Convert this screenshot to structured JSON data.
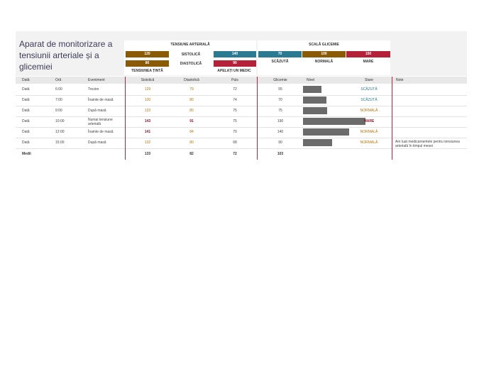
{
  "title": "Aparat de monitorizare a tensiunii arteriale și a glicemiei",
  "bp_panel": {
    "title": "TENSIUNE ARTERIALĂ",
    "target_systolic": "120",
    "systolic_label": "SISTOLICĂ",
    "call_systolic": "140",
    "target_diastolic": "80",
    "diastolic_label": "DIASTOLICĂ",
    "call_diastolic": "90",
    "target_caption": "TENSIUNEA ȚINTĂ",
    "call_caption": "APELAȚI UN MEDIC"
  },
  "glucose_panel": {
    "title": "SCALĂ GLICEMIE",
    "low_value": "70",
    "normal_value": "100",
    "high_value": "150",
    "low_label": "SCĂZUTĂ",
    "normal_label": "NORMALĂ",
    "high_label": "MARE"
  },
  "columns": {
    "date": "Dată",
    "time": "Oră",
    "event": "Eveniment",
    "systolic": "Sistolică",
    "diastolic": "Diastolică",
    "pulse": "Puls",
    "glucose": "Glicemie",
    "level": "Nivel",
    "status": "Stare",
    "notes": "Note"
  },
  "rows": [
    {
      "date": "Dată",
      "time": "6:00",
      "event": "Trezire",
      "systolic": "129",
      "diastolic": "79",
      "pulse": "72",
      "glucose": "55",
      "level": 0.29,
      "status": "SCĂZUTĂ",
      "notes": ""
    },
    {
      "date": "Dată",
      "time": "7:00",
      "event": "Înainte de masă",
      "systolic": "120",
      "diastolic": "80",
      "pulse": "74",
      "glucose": "70",
      "level": 0.37,
      "status": "SCĂZUTĂ",
      "notes": ""
    },
    {
      "date": "Dată",
      "time": "9:00",
      "event": "După masă",
      "systolic": "133",
      "diastolic": "80",
      "pulse": "75",
      "glucose": "75",
      "level": 0.39,
      "status": "NORMALĂ",
      "notes": ""
    },
    {
      "date": "Dată",
      "time": "10:00",
      "event": "Numai tensiune arterială",
      "systolic": "143",
      "diastolic": "91",
      "pulse": "75",
      "glucose": "190",
      "level": 1.0,
      "status": "MARE",
      "notes": ""
    },
    {
      "date": "Dată",
      "time": "12:00",
      "event": "Înainte de masă",
      "systolic": "141",
      "diastolic": "84",
      "pulse": "70",
      "glucose": "140",
      "level": 0.74,
      "status": "NORMALĂ",
      "notes": ""
    },
    {
      "date": "Dată",
      "time": "15:00",
      "event": "După masă",
      "systolic": "132",
      "diastolic": "80",
      "pulse": "68",
      "glucose": "90",
      "level": 0.47,
      "status": "NORMALĂ",
      "notes": "Am luat medicamentele pentru tensiunea arterială în timpul mesei"
    }
  ],
  "averages": {
    "label": "Medii",
    "systolic": "133",
    "diastolic": "82",
    "pulse": "72",
    "glucose": "103"
  },
  "colors": {
    "target": "#8a5a05",
    "call": "#b6213a",
    "low": "#2a7a94",
    "normal_text": "#b8730a",
    "high_text": "#8e1a2e",
    "bar": "#6b6b6b"
  }
}
